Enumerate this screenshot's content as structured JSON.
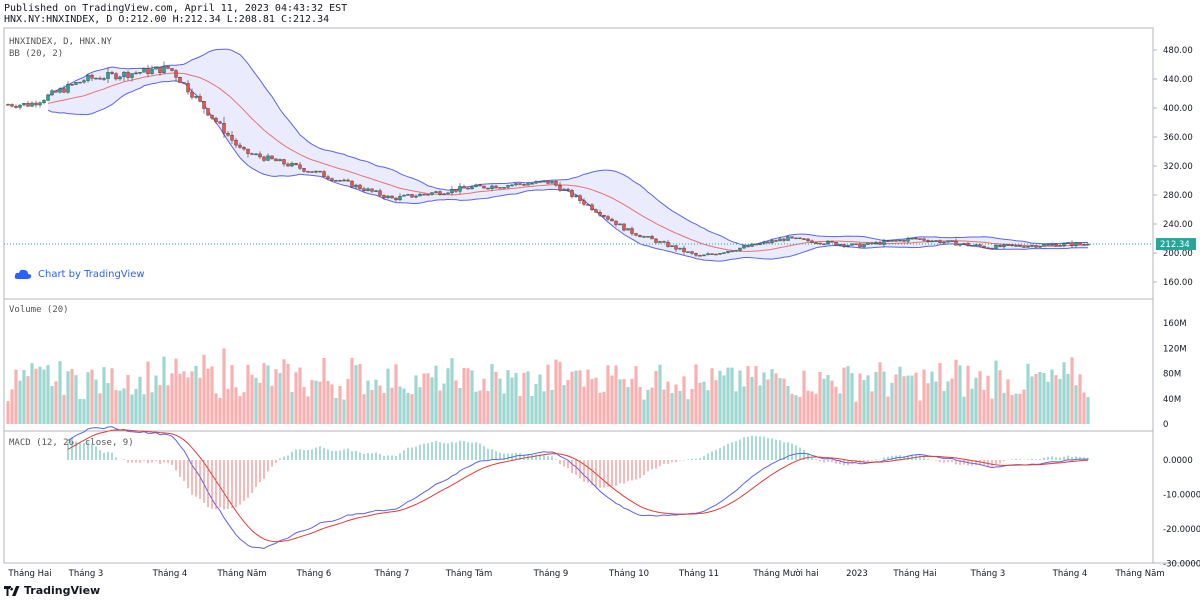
{
  "header": {
    "published": "Published on TradingView.com, April 11, 2023 04:43:32 EST",
    "ohlc": "HNX.NY:HNXINDEX, D O:212.00 H:212.34 L:208.81 C:212.34"
  },
  "panes": {
    "price_title": "HNXINDEX, D, HNX.NY",
    "bb_title": "BB (20, 2)",
    "volume_title": "Volume (20)",
    "macd_title": "MACD (12, 26, close, 9)",
    "last_price_label": "212.34"
  },
  "watermark": "Chart by TradingView",
  "brand": "TradingView",
  "colors": {
    "up": "#26a69a",
    "down": "#ef5350",
    "bb_band": "#5b63e8",
    "bb_basis": "#e57373",
    "macd": "#5b63e8",
    "signal": "#e53935",
    "last": "#26a69a"
  },
  "chart_data": {
    "type": "candlestick",
    "x_ticks": [
      "Tháng Hai",
      "Tháng 3",
      "Tháng 4",
      "Tháng Năm",
      "Tháng 6",
      "Tháng 7",
      "Tháng Tám",
      "Tháng 9",
      "Tháng 10",
      "Tháng 11",
      "Tháng Mười hai",
      "2023",
      "Tháng Hai",
      "Tháng 3",
      "Tháng 4",
      "Tháng Năm"
    ],
    "price_ticks": [
      "480.00",
      "440.00",
      "400.00",
      "360.00",
      "320.00",
      "280.00",
      "240.00",
      "200.00",
      "160.00"
    ],
    "volume_ticks": [
      "160M",
      "120M",
      "80M",
      "40M",
      "0"
    ],
    "macd_ticks": [
      "0.0000",
      "-10.0000",
      "-20.0000",
      "-30.0000"
    ],
    "last_close": 212.34,
    "close_anchors": [
      {
        "label": "Tháng Hai",
        "close": 415
      },
      {
        "label": "Tháng 3",
        "close": 440
      },
      {
        "label": "Tháng 4",
        "close": 455
      },
      {
        "label": "Tháng Năm",
        "close": 340
      },
      {
        "label": "Tháng 6",
        "close": 312
      },
      {
        "label": "Tháng 7",
        "close": 275
      },
      {
        "label": "Tháng Tám",
        "close": 290
      },
      {
        "label": "Tháng 9",
        "close": 298
      },
      {
        "label": "Tháng 10",
        "close": 230
      },
      {
        "label": "Tháng 11",
        "close": 195
      },
      {
        "label": "Tháng Mười hai",
        "close": 220
      },
      {
        "label": "2023",
        "close": 210
      },
      {
        "label": "Tháng Hai",
        "close": 220
      },
      {
        "label": "Tháng 3",
        "close": 208
      },
      {
        "label": "Tháng 4",
        "close": 212
      }
    ]
  }
}
